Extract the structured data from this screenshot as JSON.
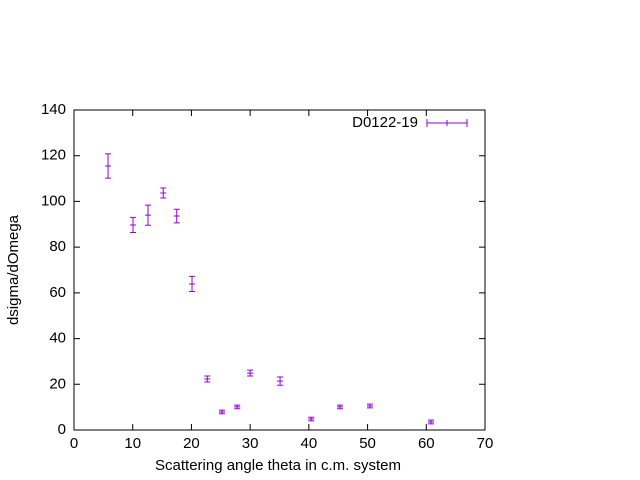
{
  "chart_data": {
    "type": "scatter",
    "xlabel": "Scattering angle theta in c.m. system",
    "ylabel": "dsigma/dOmega",
    "xlim": [
      0,
      70
    ],
    "xticks": [
      0,
      10,
      20,
      30,
      40,
      50,
      60,
      70
    ],
    "ylim": [
      0,
      140
    ],
    "yticks": [
      0,
      20,
      40,
      60,
      80,
      100,
      120,
      140
    ],
    "legend": "top-right",
    "series": [
      {
        "name": "D0122-19",
        "color": "#9400d3",
        "x": [
          5.8,
          10.05,
          12.6,
          15.2,
          17.5,
          20.1,
          22.7,
          25.2,
          27.8,
          30.0,
          35.1,
          40.4,
          45.3,
          50.4,
          60.8
        ],
        "values": [
          115.5,
          89.7,
          94,
          103.7,
          93.6,
          63.9,
          22.3,
          7.9,
          10.1,
          24.9,
          21.4,
          4.8,
          10.1,
          10.5,
          3.5
        ],
        "errors": [
          5.3,
          3.3,
          4.4,
          2.2,
          3,
          3.3,
          1.3,
          0.8,
          0.8,
          1.3,
          1.8,
          0.8,
          0.8,
          0.8,
          0.8
        ]
      }
    ]
  }
}
